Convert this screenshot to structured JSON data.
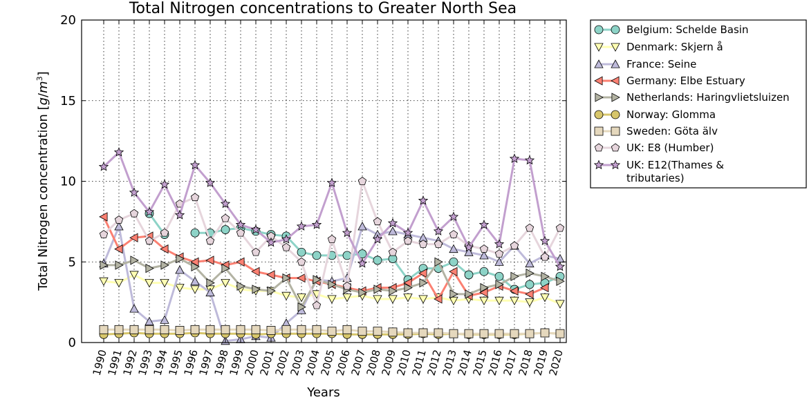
{
  "chart_data": {
    "type": "line",
    "title": "Total Nitrogen concentrations to Greater North Sea",
    "xlabel": "Years",
    "ylabel_text": "Total Nitrogen concentration",
    "ylabel_unit_g": "g",
    "ylabel_unit_m": "m",
    "ylabel_unit_exp": "3",
    "ylim": [
      0,
      20
    ],
    "yticks": [
      0,
      5,
      10,
      15,
      20
    ],
    "x": [
      1990,
      1991,
      1992,
      1993,
      1994,
      1995,
      1996,
      1997,
      1998,
      1999,
      2000,
      2001,
      2002,
      2003,
      2004,
      2005,
      2006,
      2007,
      2008,
      2009,
      2010,
      2011,
      2012,
      2013,
      2014,
      2015,
      2016,
      2017,
      2018,
      2019,
      2020
    ],
    "x_tick_labels": [
      "1990",
      "1991",
      "1992",
      "1993",
      "1994",
      "1995",
      "1996",
      "1997",
      "1998",
      "1999",
      "2000",
      "2001",
      "2002",
      "2003",
      "2004",
      "2005",
      "2006",
      "2007",
      "2008",
      "2009",
      "2010",
      "2011",
      "2012",
      "2013",
      "2014",
      "2015",
      "2016",
      "2017",
      "2018",
      "2019",
      "2020"
    ],
    "grid": true,
    "legend_position": "right, outside plot",
    "series": [
      {
        "name": "Belgium: Schelde Basin",
        "color": "#8dd3c7",
        "marker": "circle",
        "values": [
          null,
          null,
          null,
          8.0,
          6.7,
          null,
          6.8,
          6.8,
          7.0,
          7.1,
          6.9,
          6.7,
          6.6,
          5.6,
          5.4,
          5.4,
          5.4,
          5.5,
          5.1,
          5.2,
          3.9,
          4.6,
          4.6,
          5.0,
          4.2,
          4.4,
          4.1,
          3.3,
          3.6,
          3.7,
          4.1
        ]
      },
      {
        "name": "Denmark: Skjern å",
        "color": "#ffffb3",
        "marker": "triangle-down",
        "values": [
          3.8,
          3.7,
          4.2,
          3.7,
          3.7,
          3.4,
          3.3,
          3.3,
          3.7,
          3.3,
          3.2,
          3.2,
          2.9,
          2.8,
          3.0,
          2.7,
          2.8,
          2.9,
          2.7,
          2.7,
          2.8,
          2.7,
          2.8,
          2.6,
          2.7,
          2.6,
          2.6,
          2.6,
          2.5,
          2.8,
          2.4
        ]
      },
      {
        "name": "France: Seine",
        "color": "#bebada",
        "marker": "triangle-up",
        "values": [
          4.9,
          7.2,
          2.1,
          1.3,
          1.4,
          4.5,
          3.8,
          3.1,
          0.1,
          0.2,
          0.4,
          0.3,
          1.2,
          2.0,
          3.9,
          3.8,
          4.0,
          7.2,
          6.7,
          6.9,
          6.7,
          6.5,
          6.3,
          5.8,
          5.6,
          5.4,
          5.0,
          6.0,
          4.9,
          5.4,
          5.2
        ]
      },
      {
        "name": "Germany: Elbe Estuary",
        "color": "#fb8072",
        "marker": "triangle-left",
        "values": [
          7.8,
          5.8,
          6.5,
          6.6,
          5.8,
          5.3,
          5.0,
          5.1,
          4.8,
          5.0,
          4.4,
          4.2,
          4.0,
          4.0,
          3.8,
          3.6,
          3.4,
          3.2,
          3.4,
          3.4,
          3.7,
          4.3,
          2.7,
          4.4,
          2.9,
          3.1,
          3.5,
          3.2,
          3.0,
          3.4,
          null
        ]
      },
      {
        "name": "Netherlands: Haringvlietsluizen",
        "color": "#b3b3a3",
        "marker": "triangle-right",
        "values": [
          4.8,
          4.8,
          5.1,
          4.6,
          4.8,
          5.2,
          4.7,
          3.7,
          4.6,
          3.5,
          3.3,
          3.2,
          4.0,
          2.2,
          3.9,
          3.6,
          3.3,
          3.1,
          3.3,
          3.2,
          3.4,
          3.7,
          5.0,
          3.0,
          3.0,
          3.4,
          3.6,
          4.1,
          4.3,
          4.1,
          3.8
        ]
      },
      {
        "name": "Norway: Glomma",
        "color": "#d7c66b",
        "marker": "circle",
        "values": [
          0.5,
          0.55,
          0.6,
          0.55,
          0.55,
          0.55,
          0.6,
          0.55,
          0.55,
          0.55,
          0.5,
          0.55,
          0.55,
          0.55,
          0.55,
          0.55,
          0.5,
          0.5,
          0.5,
          0.5,
          0.5,
          0.55,
          0.5,
          0.55,
          0.5,
          0.5,
          0.5,
          0.5,
          0.55,
          0.6,
          0.55
        ]
      },
      {
        "name": "Sweden: Göta älv",
        "color": "#e5d8bd",
        "marker": "square",
        "values": [
          0.8,
          0.8,
          0.8,
          0.8,
          0.8,
          0.75,
          0.8,
          0.8,
          0.8,
          0.8,
          0.8,
          0.75,
          0.8,
          0.8,
          0.8,
          0.7,
          0.8,
          0.7,
          0.7,
          0.65,
          0.6,
          0.6,
          0.6,
          0.55,
          0.55,
          0.55,
          0.55,
          0.55,
          0.55,
          0.6,
          0.55
        ]
      },
      {
        "name": "UK: E8 (Humber)",
        "color": "#e6d5dc",
        "marker": "pentagon",
        "values": [
          6.7,
          7.6,
          8.0,
          6.3,
          6.8,
          8.6,
          9.0,
          6.3,
          7.7,
          6.8,
          5.6,
          6.6,
          5.9,
          5.0,
          2.3,
          6.4,
          3.5,
          10.0,
          7.5,
          5.6,
          6.3,
          6.1,
          6.1,
          6.7,
          6.0,
          5.8,
          5.5,
          6.0,
          7.1,
          5.3,
          7.1
        ]
      },
      {
        "name": "UK: E12(Thames & tributaries)",
        "color": "#c29fce",
        "marker": "star",
        "values": [
          10.9,
          11.8,
          9.3,
          8.1,
          9.8,
          7.9,
          11.0,
          9.9,
          8.6,
          7.3,
          7.0,
          6.2,
          6.4,
          7.2,
          7.3,
          9.9,
          6.8,
          4.9,
          6.4,
          7.4,
          6.8,
          8.8,
          6.9,
          7.8,
          5.9,
          7.3,
          6.1,
          11.4,
          11.3,
          6.3,
          4.7
        ]
      }
    ]
  }
}
